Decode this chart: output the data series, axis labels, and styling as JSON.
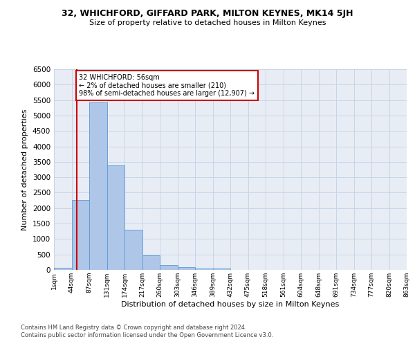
{
  "title1": "32, WHICHFORD, GIFFARD PARK, MILTON KEYNES, MK14 5JH",
  "title2": "Size of property relative to detached houses in Milton Keynes",
  "xlabel": "Distribution of detached houses by size in Milton Keynes",
  "ylabel": "Number of detached properties",
  "footer1": "Contains HM Land Registry data © Crown copyright and database right 2024.",
  "footer2": "Contains public sector information licensed under the Open Government Licence v3.0.",
  "bin_labels": [
    "1sqm",
    "44sqm",
    "87sqm",
    "131sqm",
    "174sqm",
    "217sqm",
    "260sqm",
    "303sqm",
    "346sqm",
    "389sqm",
    "432sqm",
    "475sqm",
    "518sqm",
    "561sqm",
    "604sqm",
    "648sqm",
    "691sqm",
    "734sqm",
    "777sqm",
    "820sqm",
    "863sqm"
  ],
  "bar_values": [
    70,
    2270,
    5430,
    3380,
    1290,
    480,
    165,
    80,
    55,
    45,
    0,
    0,
    0,
    0,
    0,
    0,
    0,
    0,
    0,
    0
  ],
  "bar_color": "#aec6e8",
  "bar_edge_color": "#5a9ad4",
  "grid_color": "#c8d4e8",
  "background_color": "#e8edf5",
  "property_line_color": "#cc0000",
  "annotation_text": "32 WHICHFORD: 56sqm\n← 2% of detached houses are smaller (210)\n98% of semi-detached houses are larger (12,907) →",
  "annotation_box_color": "#ffffff",
  "annotation_border_color": "#cc0000",
  "ylim": [
    0,
    6500
  ],
  "yticks": [
    0,
    500,
    1000,
    1500,
    2000,
    2500,
    3000,
    3500,
    4000,
    4500,
    5000,
    5500,
    6000,
    6500
  ]
}
